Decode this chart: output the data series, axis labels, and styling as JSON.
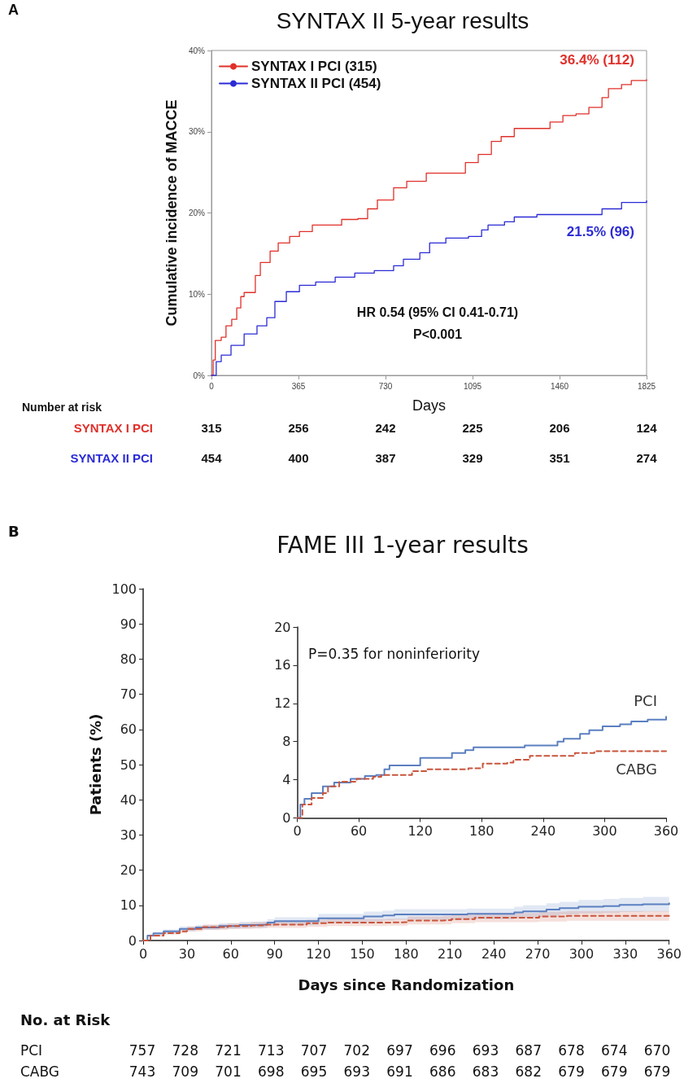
{
  "chart_data": [
    {
      "type": "step",
      "title": "SYNTAX II 5-year results",
      "xlabel": "Days",
      "ylabel": "Cumulative incidence of MACCE",
      "xlim": [
        0,
        1825
      ],
      "xticks": [
        0,
        365,
        730,
        1095,
        1460,
        1825
      ],
      "ylim": [
        0,
        40
      ],
      "yticks": [
        {
          "value": 0,
          "label": "0%"
        },
        {
          "value": 10,
          "label": "10%"
        },
        {
          "value": 20,
          "label": "20%"
        },
        {
          "value": 30,
          "label": "30%"
        },
        {
          "value": 40,
          "label": "40%"
        }
      ],
      "legend": "top left",
      "series": [
        {
          "name": "SYNTAX I PCI (315)",
          "color": "#e0302a",
          "x": [
            0,
            7,
            16,
            41,
            61,
            85,
            106,
            123,
            137,
            164,
            184,
            205,
            246,
            280,
            328,
            369,
            423,
            519,
            546,
            614,
            655,
            696,
            764,
            819,
            901,
            996,
            1065,
            1119,
            1174,
            1215,
            1270,
            1365,
            1420,
            1474,
            1529,
            1583,
            1638,
            1665,
            1720,
            1761,
            1825
          ],
          "values": [
            0,
            1.9,
            4.3,
            4.7,
            6.1,
            6.9,
            8.3,
            9.7,
            10.2,
            10.2,
            12.3,
            13.9,
            15.3,
            16.3,
            17.1,
            17.7,
            18.5,
            18.5,
            19.2,
            19.3,
            20.5,
            21.6,
            23.1,
            23.9,
            24.9,
            24.9,
            26.2,
            27.2,
            28.8,
            29.4,
            30.4,
            30.4,
            31.2,
            32.0,
            32.2,
            33.0,
            34.2,
            35.3,
            35.8,
            36.3,
            36.4
          ]
        },
        {
          "name": "SYNTAX II PCI (454)",
          "color": "#2b2bd6",
          "x": [
            0,
            20,
            41,
            82,
            137,
            191,
            232,
            266,
            314,
            369,
            437,
            519,
            601,
            683,
            764,
            805,
            874,
            915,
            983,
            1078,
            1133,
            1160,
            1229,
            1270,
            1365,
            1570,
            1638,
            1720,
            1825
          ],
          "values": [
            0,
            1.7,
            2.5,
            3.7,
            5.1,
            6.1,
            7.1,
            9.1,
            10.3,
            11.1,
            11.5,
            12.1,
            12.6,
            12.9,
            13.5,
            14.3,
            15.1,
            16.3,
            16.9,
            17.1,
            17.9,
            18.5,
            18.9,
            19.5,
            19.8,
            19.8,
            20.5,
            21.3,
            21.5
          ]
        }
      ],
      "annotations": [
        "A",
        {
          "text": "36.4% (112)",
          "x": 1825,
          "y": 36.4
        },
        {
          "text": "21.5% (96)",
          "x": 1825,
          "y": 21.5
        },
        "HR 0.54 (95% CI 0.41-0.71)",
        "P<0.001",
        "Number at risk",
        "SYNTAX I PCI",
        "315 256 242 225 206 124",
        "SYNTAX II PCI",
        "454 400 387 329 351 274"
      ]
    },
    {
      "type": "step",
      "title": "FAME III 1-year results",
      "xlabel": "Days since Randomization",
      "ylabel": "Patients (%)",
      "xlim": [
        0,
        360
      ],
      "xticks": [
        0,
        30,
        60,
        90,
        120,
        150,
        180,
        210,
        240,
        270,
        300,
        330,
        360
      ],
      "ylim": [
        0,
        100
      ],
      "yticks": [
        0,
        10,
        20,
        30,
        40,
        50,
        60,
        70,
        80,
        90,
        100
      ],
      "series": [
        {
          "color": "#5b7fc0",
          "x": [
            0,
            3,
            7,
            14,
            25,
            36,
            52,
            66,
            77,
            85,
            90,
            112,
            120,
            140,
            151,
            164,
            172,
            203,
            222,
            235,
            254,
            260,
            276,
            285,
            298,
            315,
            326,
            342,
            360
          ],
          "values": [
            0,
            1.4,
            2.0,
            2.6,
            3.3,
            3.7,
            4.1,
            4.4,
            4.5,
            5.1,
            5.5,
            5.5,
            6.3,
            6.3,
            6.8,
            7.1,
            7.4,
            7.4,
            7.6,
            7.6,
            8.0,
            8.3,
            8.8,
            9.2,
            9.6,
            9.8,
            10.1,
            10.3,
            10.6
          ],
          "lower": [
            0,
            1.1,
            1.6,
            2.1,
            2.6,
            3.0,
            3.3,
            3.5,
            3.6,
            4.1,
            4.4,
            4.4,
            5.0,
            5.0,
            5.4,
            5.7,
            5.9,
            5.9,
            6.1,
            6.1,
            6.4,
            6.6,
            7.0,
            7.4,
            7.7,
            7.8,
            8.1,
            8.2,
            8.5
          ],
          "upper": [
            0,
            1.7,
            2.4,
            3.1,
            4.0,
            4.4,
            4.9,
            5.3,
            5.4,
            6.1,
            6.6,
            6.6,
            7.6,
            7.6,
            8.2,
            8.5,
            8.9,
            8.9,
            9.1,
            9.1,
            9.6,
            10.0,
            10.6,
            11.0,
            11.5,
            11.8,
            12.1,
            12.4,
            12.7
          ]
        },
        {
          "color": "#c8553d",
          "line_style": "dashed",
          "x": [
            0,
            5,
            14,
            25,
            30,
            41,
            58,
            74,
            82,
            99,
            112,
            126,
            167,
            181,
            205,
            211,
            227,
            260,
            271,
            290,
            360
          ],
          "values": [
            0,
            1.4,
            2.1,
            2.6,
            3.3,
            3.8,
            4.1,
            4.3,
            4.5,
            4.5,
            4.9,
            5.1,
            5.2,
            5.7,
            5.8,
            6.1,
            6.5,
            6.5,
            6.8,
            7.0,
            7.0
          ],
          "lower": [
            0,
            1.1,
            1.7,
            2.1,
            2.6,
            3.0,
            3.3,
            3.4,
            3.6,
            3.6,
            3.9,
            4.1,
            4.2,
            4.6,
            4.6,
            4.9,
            5.2,
            5.2,
            5.4,
            5.6,
            5.6
          ],
          "upper": [
            0,
            1.7,
            2.5,
            3.1,
            4.0,
            4.6,
            4.9,
            5.2,
            5.4,
            5.4,
            5.9,
            6.1,
            6.2,
            6.8,
            7.0,
            7.3,
            7.8,
            7.8,
            8.2,
            8.4,
            8.4
          ]
        }
      ],
      "annotations": [
        "B",
        "No. at Risk",
        "PCI",
        "757 728 721 713 707 702 697 696 693 687 678 674 670",
        "CABG",
        "743 709 701 698 695 693 691 686 683 682 679 679 679"
      ]
    },
    {
      "type": "step",
      "xlim": [
        0,
        360
      ],
      "xticks": [
        0,
        60,
        120,
        180,
        240,
        300,
        360
      ],
      "ylim": [
        0,
        20
      ],
      "yticks": [
        0,
        4,
        8,
        12,
        16,
        20
      ],
      "series": [
        {
          "name": "PCI",
          "color": "#5b7fc0",
          "x": [
            0,
            3,
            7,
            14,
            25,
            36,
            52,
            66,
            77,
            85,
            90,
            112,
            120,
            140,
            151,
            164,
            172,
            203,
            222,
            235,
            254,
            260,
            276,
            285,
            298,
            315,
            326,
            342,
            360
          ],
          "values": [
            0,
            1.4,
            2.0,
            2.6,
            3.3,
            3.7,
            4.1,
            4.4,
            4.5,
            5.1,
            5.5,
            5.5,
            6.3,
            6.3,
            6.8,
            7.1,
            7.4,
            7.4,
            7.6,
            7.6,
            8.0,
            8.3,
            8.8,
            9.2,
            9.6,
            9.8,
            10.1,
            10.3,
            10.6
          ]
        },
        {
          "name": "CABG",
          "color": "#c8553d",
          "line_style": "dashed",
          "x": [
            0,
            5,
            14,
            25,
            30,
            41,
            58,
            74,
            82,
            99,
            112,
            126,
            167,
            181,
            205,
            211,
            227,
            260,
            271,
            290,
            360
          ],
          "values": [
            0,
            1.4,
            2.1,
            2.6,
            3.3,
            3.8,
            4.1,
            4.3,
            4.5,
            4.5,
            4.9,
            5.1,
            5.2,
            5.7,
            5.8,
            6.1,
            6.5,
            6.5,
            6.8,
            7.0,
            7.0
          ]
        }
      ],
      "annotations": [
        "P=0.35 for noninferiority"
      ]
    }
  ]
}
